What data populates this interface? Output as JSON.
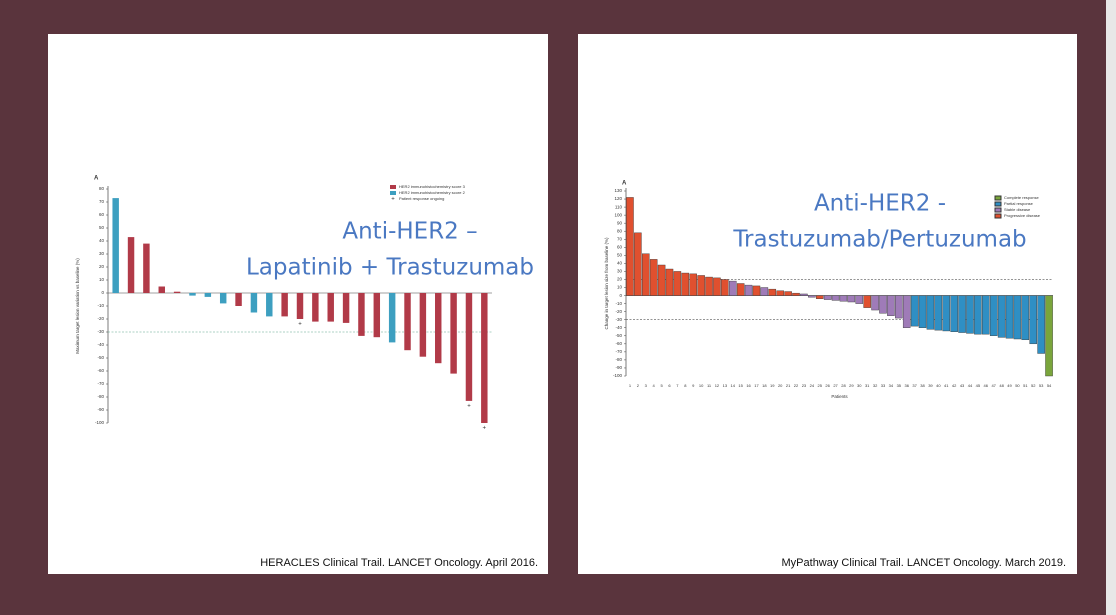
{
  "chart_data": [
    {
      "type": "waterfall",
      "panel_label": "A",
      "ylabel": "Maximum target lesion variation vs baseline (%)",
      "annotations": [
        "Anti-HER2 –",
        "Lapatinib + Trastuzumab"
      ],
      "caption": "HERACLES Clinical Trail. LANCET Oncology. April 2016.",
      "categories": [
        null,
        null,
        null,
        null,
        null,
        null,
        null,
        null,
        null,
        null,
        null,
        null,
        null,
        null,
        null,
        null,
        null,
        null,
        null,
        null,
        null,
        null,
        null,
        null,
        null
      ],
      "series": [
        {
          "name": "HER2 immunohistochemistry score 3",
          "color": "#b13a48",
          "values": [
            null,
            43,
            38,
            5,
            1,
            null,
            null,
            null,
            -10,
            null,
            null,
            -18,
            -20,
            -22,
            -22,
            -23,
            -33,
            -34,
            null,
            -44,
            -49,
            -54,
            -62,
            -83,
            -100
          ]
        },
        {
          "name": "HER2 immunohistochemistry score 2",
          "color": "#3d9fc0",
          "values": [
            73,
            null,
            null,
            null,
            null,
            -2,
            -3,
            -8,
            null,
            -15,
            -18,
            null,
            null,
            null,
            null,
            null,
            null,
            null,
            -38,
            null,
            null,
            null,
            null,
            null,
            null
          ]
        }
      ],
      "ongoing": {
        "name": "Patient response ongoing",
        "indices": [
          12,
          23,
          24
        ]
      },
      "reference_lines": [
        -30
      ],
      "ylim": [
        -100,
        80
      ],
      "yticks": [
        80,
        70,
        60,
        50,
        40,
        30,
        20,
        10,
        0,
        -10,
        -20,
        -30,
        -40,
        -50,
        -60,
        -70,
        -80,
        -90,
        -100
      ]
    },
    {
      "type": "waterfall",
      "panel_label": "A",
      "ylabel": "Change in target lesion size from baseline (%)",
      "xlabel": "Patients",
      "annotations": [
        "Anti-HER2 -",
        "Trastuzumab/Pertuzumab"
      ],
      "caption": "MyPathway Clinical Trail. LANCET Oncology. March 2019.",
      "categories": [
        "1",
        "2",
        "3",
        "4",
        "5",
        "6",
        "7",
        "8",
        "9",
        "10",
        "11",
        "12",
        "13",
        "14",
        "15",
        "16",
        "17",
        "18",
        "19",
        "20",
        "21",
        "22",
        "23",
        "24",
        "25",
        "26",
        "27",
        "28",
        "29",
        "30",
        "31",
        "32",
        "33",
        "34",
        "35",
        "36",
        "37",
        "38",
        "39",
        "40",
        "41",
        "42",
        "43",
        "44",
        "45",
        "46",
        "47",
        "48",
        "49",
        "50",
        "51",
        "52",
        "53",
        "54"
      ],
      "series": [
        {
          "name": "Complete response",
          "color": "#7aa53c",
          "values": [
            null,
            null,
            null,
            null,
            null,
            null,
            null,
            null,
            null,
            null,
            null,
            null,
            null,
            null,
            null,
            null,
            null,
            null,
            null,
            null,
            null,
            null,
            null,
            null,
            null,
            null,
            null,
            null,
            null,
            null,
            null,
            null,
            null,
            null,
            null,
            null,
            null,
            null,
            null,
            null,
            null,
            null,
            null,
            null,
            null,
            null,
            null,
            null,
            null,
            null,
            null,
            null,
            null,
            -100
          ]
        },
        {
          "name": "Partial response",
          "color": "#2f8fc4",
          "values": [
            null,
            null,
            null,
            null,
            null,
            null,
            null,
            null,
            null,
            null,
            null,
            null,
            null,
            null,
            null,
            null,
            null,
            null,
            null,
            null,
            null,
            null,
            null,
            null,
            null,
            null,
            null,
            null,
            null,
            null,
            null,
            null,
            null,
            null,
            null,
            null,
            -38,
            -40,
            -42,
            -43,
            -44,
            -45,
            -46,
            -47,
            -48,
            -48,
            -50,
            -52,
            -53,
            -54,
            -55,
            -60,
            -72,
            null
          ]
        },
        {
          "name": "Stable disease",
          "color": "#9f7bb8",
          "values": [
            null,
            null,
            null,
            null,
            null,
            null,
            null,
            null,
            null,
            null,
            null,
            null,
            null,
            18,
            null,
            13,
            null,
            10,
            null,
            null,
            null,
            null,
            2,
            -2,
            null,
            -5,
            -6,
            -7,
            -8,
            -10,
            null,
            -18,
            -22,
            -25,
            -28,
            -40,
            null,
            null,
            null,
            null,
            null,
            null,
            null,
            null,
            null,
            null,
            null,
            null,
            null,
            null,
            null,
            null,
            null,
            null
          ]
        },
        {
          "name": "Progressive disease",
          "color": "#e0502f",
          "values": [
            122,
            78,
            52,
            45,
            38,
            33,
            30,
            28,
            27,
            25,
            23,
            22,
            20,
            null,
            15,
            null,
            12,
            null,
            8,
            6,
            5,
            3,
            null,
            null,
            -4,
            null,
            null,
            null,
            null,
            null,
            -15,
            null,
            null,
            null,
            null,
            null,
            null,
            null,
            null,
            null,
            null,
            null,
            null,
            null,
            null,
            null,
            null,
            null,
            null,
            null,
            null,
            null,
            null,
            null
          ]
        }
      ],
      "reference_lines": [
        20,
        -30
      ],
      "ylim": [
        -100,
        130
      ],
      "yticks": [
        130,
        120,
        110,
        100,
        90,
        80,
        70,
        60,
        50,
        40,
        30,
        20,
        10,
        0,
        -10,
        -20,
        -30,
        -40,
        -50,
        -60,
        -70,
        -80,
        -90,
        -100
      ]
    }
  ]
}
